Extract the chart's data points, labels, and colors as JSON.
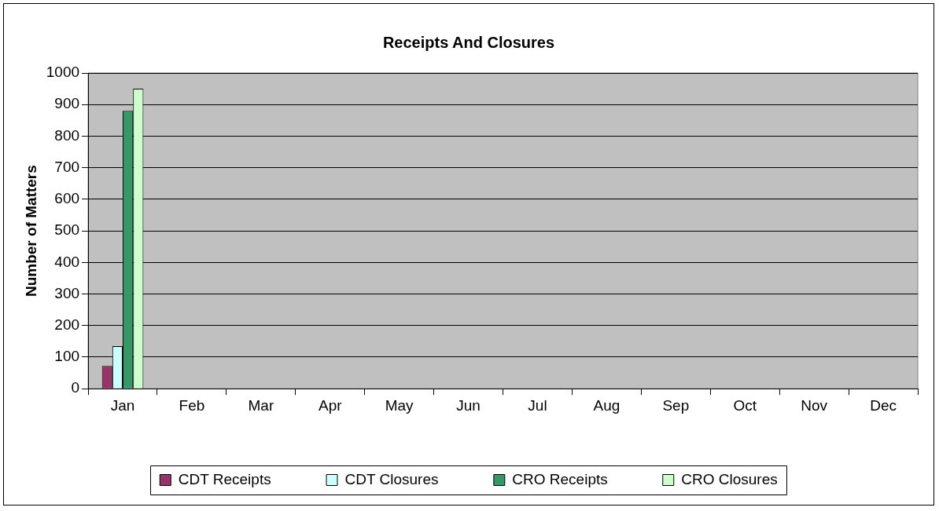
{
  "chart_data": {
    "type": "bar",
    "title": "Receipts And Closures",
    "ylabel": "Number of Matters",
    "categories": [
      "Jan",
      "Feb",
      "Mar",
      "Apr",
      "May",
      "Jun",
      "Jul",
      "Aug",
      "Sep",
      "Oct",
      "Nov",
      "Dec"
    ],
    "series": [
      {
        "name": "CDT Receipts",
        "color": "#993366",
        "values": [
          72,
          null,
          null,
          null,
          null,
          null,
          null,
          null,
          null,
          null,
          null,
          null
        ]
      },
      {
        "name": "CDT Closures",
        "color": "#ccffff",
        "values": [
          135,
          null,
          null,
          null,
          null,
          null,
          null,
          null,
          null,
          null,
          null,
          null
        ]
      },
      {
        "name": "CRO Receipts",
        "color": "#339966",
        "values": [
          880,
          null,
          null,
          null,
          null,
          null,
          null,
          null,
          null,
          null,
          null,
          null
        ]
      },
      {
        "name": "CRO Closures",
        "color": "#ccffcc",
        "values": [
          950,
          null,
          null,
          null,
          null,
          null,
          null,
          null,
          null,
          null,
          null,
          null
        ]
      }
    ],
    "ylim": [
      0,
      1000
    ],
    "yticks": [
      0,
      100,
      200,
      300,
      400,
      500,
      600,
      700,
      800,
      900,
      1000
    ],
    "grid": "y",
    "legend": "bottom"
  }
}
